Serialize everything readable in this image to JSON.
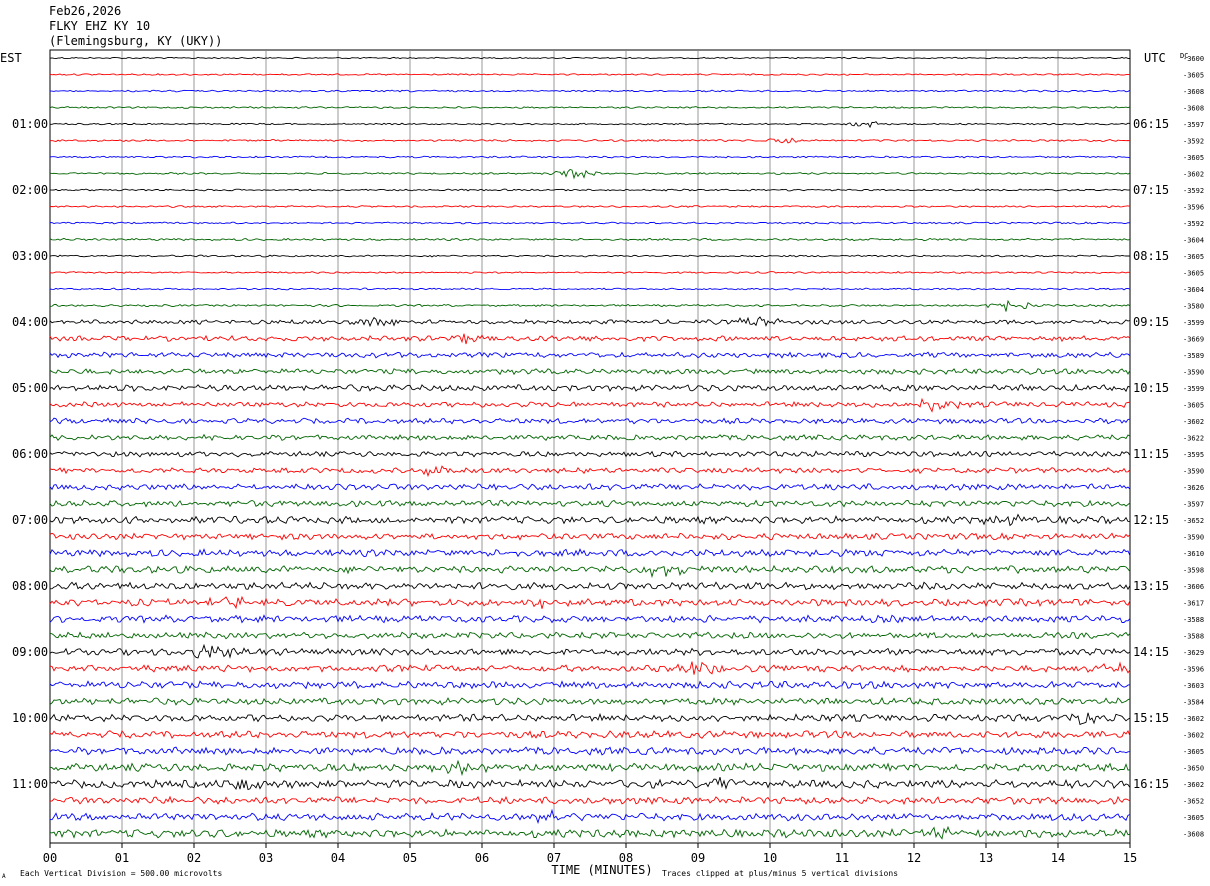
{
  "header": {
    "date": "Feb26,2026",
    "station": "FLKY EHZ KY 10",
    "location": "(Flemingsburg, KY (UKY))"
  },
  "left_zone_label": "EST",
  "right_zone_label": "UTC",
  "dc_label": "DC",
  "footer": {
    "scale_note": "Each Vertical Division =  500.00 microvolts",
    "xlabel": "TIME (MINUTES)",
    "clip_note": "Traces clipped at plus/minus 5 vertical divisions",
    "corner_mark": "A"
  },
  "colors": {
    "trace_cycle": [
      "#000000",
      "#ff0000",
      "#0000ff",
      "#006400"
    ],
    "grid": "#808080",
    "frame": "#000000"
  },
  "chart_data": {
    "type": "line",
    "xlabel": "TIME (MINUTES)",
    "xlim": [
      0,
      15
    ],
    "x_ticks": [
      "00",
      "01",
      "02",
      "03",
      "04",
      "05",
      "06",
      "07",
      "08",
      "09",
      "10",
      "11",
      "12",
      "13",
      "14",
      "15"
    ],
    "rows": 48,
    "rows_per_hour": 4,
    "left_hour_labels": [
      "EST",
      "01:00",
      "02:00",
      "03:00",
      "04:00",
      "05:00",
      "06:00",
      "07:00",
      "08:00",
      "09:00",
      "10:00",
      "11:00"
    ],
    "right_hour_labels": [
      "UTC",
      "06:15",
      "07:15",
      "08:15",
      "09:15",
      "10:15",
      "11:15",
      "12:15",
      "13:15",
      "14:15",
      "15:15",
      "16:15"
    ],
    "dc_offsets": [
      "-3600",
      "-3605",
      "-3608",
      "-3608",
      "-3597",
      "-3592",
      "-3605",
      "-3602",
      "-3592",
      "-3596",
      "-3592",
      "-3604",
      "-3605",
      "-3605",
      "-3604",
      "-3580",
      "-3599",
      "-3669",
      "-3589",
      "-3590",
      "-3599",
      "-3605",
      "-3602",
      "-3622",
      "-3595",
      "-3590",
      "-3626",
      "-3597",
      "-3652",
      "-3590",
      "-3610",
      "-3598",
      "-3606",
      "-3617",
      "-3588",
      "-3588",
      "-3629",
      "-3596",
      "-3603",
      "-3584",
      "-3602",
      "-3602",
      "-3605",
      "-3650",
      "-3602",
      "-3652",
      "-3605",
      "-3608"
    ],
    "noise_level": [
      0.8,
      0.9,
      1.0,
      1.0,
      0.9,
      1.1,
      1.0,
      1.0,
      1.0,
      1.0,
      1.0,
      1.2,
      1.0,
      1.0,
      1.0,
      1.2,
      2.5,
      3.0,
      3.0,
      3.0,
      3.5,
      3.0,
      3.0,
      3.0,
      3.0,
      3.0,
      3.5,
      3.5,
      4.0,
      3.5,
      4.0,
      4.0,
      4.0,
      4.0,
      4.0,
      3.5,
      3.8,
      3.8,
      4.0,
      3.8,
      4.0,
      4.0,
      4.2,
      4.5,
      4.5,
      4.0,
      4.2,
      4.5
    ],
    "events": [
      {
        "row": 4,
        "minute": 11.4,
        "amp": 3
      },
      {
        "row": 5,
        "minute": 10.2,
        "amp": 3
      },
      {
        "row": 7,
        "minute": 7.3,
        "amp": 6
      },
      {
        "row": 15,
        "minute": 13.3,
        "amp": 7
      },
      {
        "row": 16,
        "minute": 9.8,
        "amp": 6
      },
      {
        "row": 16,
        "minute": 4.5,
        "amp": 4
      },
      {
        "row": 17,
        "minute": 5.8,
        "amp": 5
      },
      {
        "row": 21,
        "minute": 12.3,
        "amp": 7
      },
      {
        "row": 25,
        "minute": 5.3,
        "amp": 5
      },
      {
        "row": 28,
        "minute": 13.3,
        "amp": 6
      },
      {
        "row": 31,
        "minute": 8.5,
        "amp": 6
      },
      {
        "row": 33,
        "minute": 6.8,
        "amp": 5
      },
      {
        "row": 33,
        "minute": 2.6,
        "amp": 5
      },
      {
        "row": 36,
        "minute": 2.3,
        "amp": 8
      },
      {
        "row": 37,
        "minute": 9.0,
        "amp": 7
      },
      {
        "row": 37,
        "minute": 14.8,
        "amp": 5
      },
      {
        "row": 40,
        "minute": 14.2,
        "amp": 7
      },
      {
        "row": 43,
        "minute": 5.8,
        "amp": 6
      },
      {
        "row": 44,
        "minute": 2.8,
        "amp": 7
      },
      {
        "row": 44,
        "minute": 9.3,
        "amp": 5
      },
      {
        "row": 46,
        "minute": 7.0,
        "amp": 6
      },
      {
        "row": 47,
        "minute": 12.4,
        "amp": 5
      }
    ]
  }
}
